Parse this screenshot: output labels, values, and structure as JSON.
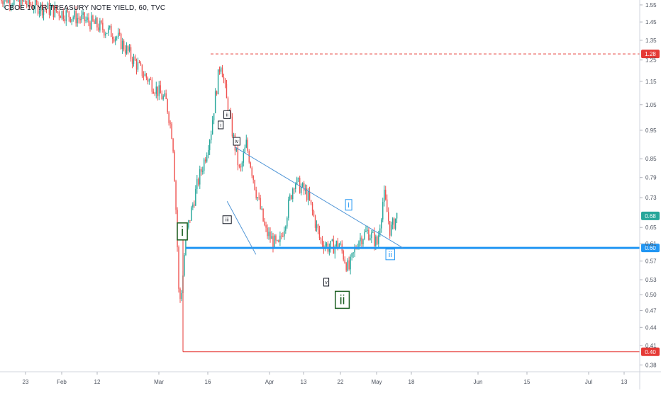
{
  "chart_data": {
    "type": "candlestick",
    "title": "CBOE 10 YR TREASURY NOTE YIELD, 60, TVC",
    "interval": "60",
    "source": "TVC",
    "colors": {
      "up": "#26a69a",
      "down": "#ef5350",
      "line_blue": "#2196f3",
      "trend_line": "#4f95d6",
      "red_line": "#e53935",
      "price_red": "#e53935",
      "price_blue": "#2196f3",
      "grid": "#eef0f3",
      "axis_text": "#4c525e"
    },
    "grid": false,
    "y_axis": {
      "scale": "log",
      "position": "right",
      "range": [
        0.37,
        1.58
      ],
      "tick_labels": [
        "1.55",
        "1.45",
        "1.35",
        "1.25",
        "1.15",
        "1.05",
        "0.95",
        "0.85",
        "0.79",
        "0.73",
        "0.65",
        "0.61",
        "0.57",
        "0.53",
        "0.50",
        "0.47",
        "0.44",
        "0.41",
        "0.38"
      ]
    },
    "x_axis": {
      "tick_labels": [
        "23",
        "Feb",
        "12",
        "Mar",
        "16",
        "Apr",
        "13",
        "22",
        "May",
        "18",
        "Jun",
        "15",
        "Jul",
        "13"
      ]
    },
    "horizontal_levels": [
      {
        "price": 1.28,
        "label": "1.28",
        "style": "dashed",
        "color": "#e53935"
      },
      {
        "price": 0.6,
        "label": "0.60",
        "style": "solid-thick",
        "color": "#2196f3"
      },
      {
        "price": 0.4,
        "label": "0.40",
        "style": "solid",
        "color": "#e53935"
      }
    ],
    "last_price": {
      "price": 0.68,
      "label": "0.68"
    },
    "candles_path": [
      [
        0.0,
        1.6
      ],
      [
        0.05,
        1.55
      ],
      [
        0.1,
        1.5
      ],
      [
        0.14,
        1.45
      ],
      [
        0.18,
        1.38
      ],
      [
        0.22,
        1.2
      ],
      [
        0.26,
        1.06
      ],
      [
        0.27,
        0.92
      ],
      [
        0.275,
        0.7
      ],
      [
        0.28,
        0.48
      ],
      [
        0.285,
        0.52
      ],
      [
        0.29,
        0.62
      ],
      [
        0.3,
        0.7
      ],
      [
        0.31,
        0.78
      ],
      [
        0.32,
        0.85
      ],
      [
        0.33,
        0.95
      ],
      [
        0.345,
        1.25
      ],
      [
        0.355,
        1.05
      ],
      [
        0.365,
        0.92
      ],
      [
        0.375,
        0.8
      ],
      [
        0.385,
        0.9
      ],
      [
        0.4,
        0.75
      ],
      [
        0.415,
        0.64
      ],
      [
        0.425,
        0.62
      ],
      [
        0.435,
        0.6
      ],
      [
        0.445,
        0.66
      ],
      [
        0.46,
        0.78
      ],
      [
        0.48,
        0.74
      ],
      [
        0.5,
        0.62
      ],
      [
        0.515,
        0.6
      ],
      [
        0.53,
        0.61
      ],
      [
        0.545,
        0.55
      ],
      [
        0.56,
        0.62
      ],
      [
        0.575,
        0.64
      ],
      [
        0.59,
        0.61
      ],
      [
        0.6,
        0.74
      ],
      [
        0.61,
        0.64
      ],
      [
        0.62,
        0.68
      ]
    ],
    "wave_labels": [
      {
        "text": "i",
        "boxed": true,
        "size": "large",
        "color": "#1b5e20",
        "price": 0.64,
        "x_frac": 0.285
      },
      {
        "text": "ii",
        "boxed": true,
        "size": "large",
        "color": "#1b5e20",
        "price": 0.49,
        "x_frac": 0.535
      },
      {
        "text": "i",
        "boxed": true,
        "size": "small",
        "color": "#2196f3",
        "price": 0.71,
        "x_frac": 0.545
      },
      {
        "text": "ii",
        "boxed": true,
        "size": "small",
        "color": "#2196f3",
        "price": 0.585,
        "x_frac": 0.61
      },
      {
        "text": "ii",
        "boxed": true,
        "size": "tiny",
        "color": "#131722",
        "price": 1.01,
        "x_frac": 0.355
      },
      {
        "text": "i",
        "boxed": true,
        "size": "tiny",
        "color": "#131722",
        "price": 0.97,
        "x_frac": 0.345
      },
      {
        "text": "iv",
        "boxed": true,
        "size": "tiny",
        "color": "#131722",
        "price": 0.91,
        "x_frac": 0.37
      },
      {
        "text": "iii",
        "boxed": true,
        "size": "tiny",
        "color": "#131722",
        "price": 0.67,
        "x_frac": 0.355
      },
      {
        "text": "v",
        "boxed": true,
        "size": "tiny",
        "color": "#131722",
        "price": 0.525,
        "x_frac": 0.51
      }
    ],
    "trendlines": [
      {
        "from": [
          0.367,
          0.89
        ],
        "to": [
          0.63,
          0.6
        ],
        "color": "#4f95d6"
      },
      {
        "from": [
          0.355,
          0.72
        ],
        "to": [
          0.4,
          0.585
        ],
        "color": "#4f95d6"
      }
    ]
  }
}
